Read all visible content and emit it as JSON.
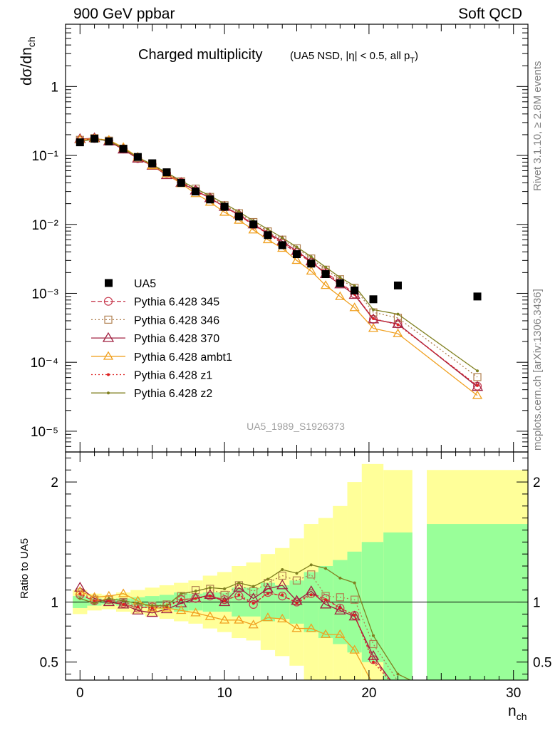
{
  "header": {
    "beam": "900 GeV ppbar",
    "process": "Soft QCD",
    "rivet_info": "Rivet 3.1.10, ≥ 2.8M events",
    "mcplots_info": "mcplots.cern.ch [arXiv:1306.3436]"
  },
  "chart_data": {
    "type": "line",
    "title": "Charged multiplicity",
    "subtitle": "(UA5 NSD, |η| < 0.5, all p",
    "subtitle_sub": "T",
    "subtitle_end": ")",
    "analysis_id": "UA5_1989_S1926373",
    "ylabel_main": "dσ/dn",
    "ylabel_main_sub": "ch",
    "ylabel_ratio": "Ratio to UA5",
    "xlabel": "n",
    "xlabel_sub": "ch",
    "x_range": [
      -1,
      31
    ],
    "y_main_range": [
      5e-06,
      8
    ],
    "y_main_scale": "log",
    "y_ratio_range": [
      0.35,
      2.25
    ],
    "x_ticks": [
      "0",
      "10",
      "20",
      "30"
    ],
    "y_main_ticks": [
      "1",
      "10⁻¹",
      "10⁻²",
      "10⁻³",
      "10⁻⁴",
      "10⁻⁵"
    ],
    "y_ratio_ticks": [
      "0.5",
      "1",
      "2"
    ],
    "legend_position": "left-middle",
    "data": {
      "name": "UA5",
      "color": "#000000",
      "x": [
        0,
        1,
        2,
        3,
        4,
        5,
        6,
        7,
        8,
        9,
        10,
        11,
        12,
        13,
        14,
        15,
        16,
        17,
        18,
        19,
        20.3,
        22,
        27.5
      ],
      "y": [
        0.155,
        0.175,
        0.16,
        0.125,
        0.095,
        0.077,
        0.057,
        0.04,
        0.03,
        0.023,
        0.018,
        0.013,
        0.01,
        0.007,
        0.005,
        0.0037,
        0.0027,
        0.0019,
        0.0014,
        0.0011,
        0.00082,
        0.0013,
        0.0009
      ]
    },
    "ratio_bands": {
      "edges": [
        -0.5,
        0.5,
        1.5,
        2.5,
        3.5,
        4.5,
        5.5,
        6.5,
        7.5,
        8.5,
        9.5,
        10.5,
        11.5,
        12.5,
        13.5,
        14.5,
        15.5,
        16.5,
        17.5,
        18.5,
        19.5,
        21.0,
        23.0,
        24.0,
        31.0
      ],
      "stat_lo": [
        0.95,
        0.97,
        0.98,
        0.97,
        0.96,
        0.95,
        0.94,
        0.92,
        0.93,
        0.92,
        0.92,
        0.88,
        0.88,
        0.84,
        0.86,
        0.82,
        0.75,
        0.7,
        0.65,
        0.58,
        0.5,
        0.0,
        null,
        0.0
      ],
      "stat_hi": [
        1.05,
        1.03,
        1.02,
        1.03,
        1.04,
        1.05,
        1.06,
        1.08,
        1.07,
        1.08,
        1.08,
        1.12,
        1.12,
        1.16,
        1.14,
        1.18,
        1.25,
        1.3,
        1.35,
        1.42,
        1.5,
        1.58,
        null,
        1.65
      ],
      "syst_lo": [
        0.9,
        0.93,
        0.94,
        0.92,
        0.9,
        0.88,
        0.86,
        0.84,
        0.82,
        0.78,
        0.75,
        0.7,
        0.68,
        0.6,
        0.55,
        0.47,
        0.35,
        0.3,
        0.25,
        0.0,
        0.0,
        0.0,
        null,
        0.42
      ],
      "syst_hi": [
        1.1,
        1.07,
        1.06,
        1.08,
        1.1,
        1.12,
        1.14,
        1.16,
        1.18,
        1.22,
        1.25,
        1.3,
        1.33,
        1.4,
        1.45,
        1.53,
        1.65,
        1.7,
        1.8,
        2.0,
        2.15,
        2.1,
        null,
        2.1
      ],
      "stat_color": "#99ff99",
      "syst_color": "#ffff99"
    },
    "series": [
      {
        "name": "Pythia 6.428 345",
        "color": "#c83c50",
        "dash": "6,3",
        "marker": "circle",
        "markerSize": 5.5,
        "y": [
          0.164,
          0.176,
          0.163,
          0.124,
          0.09,
          0.074,
          0.055,
          0.041,
          0.031,
          0.024,
          0.018,
          0.0135,
          0.0098,
          0.0073,
          0.0053,
          0.0039,
          0.0028,
          0.002,
          0.00145,
          0.00098,
          0.00042,
          0.00036,
          4.5e-05
        ],
        "ratio": [
          1.06,
          1.01,
          1.02,
          0.99,
          0.95,
          0.96,
          0.97,
          1.02,
          1.03,
          1.05,
          1.02,
          1.05,
          0.98,
          1.08,
          1.05,
          1.0,
          1.07,
          1.03,
          0.95,
          0.89,
          0.52,
          0.28,
          0.05
        ]
      },
      {
        "name": "Pythia 6.428 346",
        "color": "#b08050",
        "dash": "2,3",
        "marker": "square",
        "markerSize": 10,
        "y": [
          0.168,
          0.178,
          0.164,
          0.125,
          0.092,
          0.075,
          0.056,
          0.042,
          0.033,
          0.025,
          0.019,
          0.0145,
          0.0108,
          0.0079,
          0.006,
          0.0045,
          0.0032,
          0.0022,
          0.0016,
          0.0012,
          0.00053,
          0.00044,
          6.1e-05
        ],
        "ratio": [
          1.08,
          1.02,
          1.02,
          1.0,
          0.97,
          0.97,
          0.98,
          1.05,
          1.1,
          1.11,
          1.06,
          1.14,
          1.09,
          1.16,
          1.22,
          1.18,
          1.23,
          1.05,
          1.04,
          1.02,
          0.65,
          0.34,
          0.07
        ]
      },
      {
        "name": "Pythia 6.428 370",
        "color": "#a02040",
        "dash": "",
        "marker": "triangle",
        "markerSize": 7,
        "y": [
          0.173,
          0.178,
          0.16,
          0.122,
          0.09,
          0.071,
          0.052,
          0.04,
          0.031,
          0.024,
          0.018,
          0.0139,
          0.01,
          0.0075,
          0.0057,
          0.0041,
          0.0029,
          0.0019,
          0.00135,
          0.00095,
          0.00042,
          0.00036,
          4.4e-05
        ],
        "ratio": [
          1.12,
          1.03,
          1.0,
          0.98,
          0.93,
          0.91,
          0.94,
          0.99,
          1.03,
          1.06,
          1.0,
          1.12,
          1.03,
          1.11,
          1.14,
          1.01,
          1.09,
          0.98,
          0.93,
          0.88,
          0.55,
          0.26,
          0.05
        ]
      },
      {
        "name": "Pythia 6.428 ambt1",
        "color": "#f0a020",
        "dash": "",
        "marker": "triangle",
        "markerSize": 6,
        "y": [
          0.17,
          0.175,
          0.167,
          0.131,
          0.095,
          0.071,
          0.054,
          0.039,
          0.028,
          0.021,
          0.015,
          0.0115,
          0.0083,
          0.006,
          0.0045,
          0.003,
          0.0021,
          0.0013,
          0.0009,
          0.00062,
          0.00031,
          0.00026,
          3.3e-05
        ],
        "ratio": [
          1.09,
          1.04,
          1.05,
          1.07,
          1.01,
          0.95,
          0.95,
          0.93,
          0.91,
          0.88,
          0.85,
          0.85,
          0.81,
          0.87,
          0.86,
          0.78,
          0.78,
          0.73,
          0.73,
          0.6,
          0.31,
          0.1,
          0.03
        ]
      },
      {
        "name": "Pythia 6.428 z1",
        "color": "#dd2020",
        "dash": "2,3",
        "marker": "dot",
        "markerSize": 2,
        "y": [
          0.165,
          0.176,
          0.162,
          0.123,
          0.091,
          0.073,
          0.054,
          0.041,
          0.031,
          0.024,
          0.018,
          0.0136,
          0.0099,
          0.0074,
          0.0054,
          0.004,
          0.0028,
          0.002,
          0.0014,
          0.00097,
          0.00043,
          0.00035,
          4.6e-05
        ],
        "ratio": [
          1.07,
          1.01,
          1.01,
          0.98,
          0.96,
          0.95,
          0.96,
          1.02,
          1.03,
          1.05,
          1.01,
          1.06,
          0.99,
          1.07,
          1.06,
          0.99,
          1.06,
          1.02,
          0.95,
          0.89,
          0.5,
          0.27,
          0.05
        ]
      },
      {
        "name": "Pythia 6.428 z2",
        "color": "#808020",
        "dash": "",
        "marker": "dot",
        "markerSize": 2,
        "y": [
          0.16,
          0.172,
          0.164,
          0.126,
          0.094,
          0.074,
          0.056,
          0.043,
          0.033,
          0.026,
          0.02,
          0.0152,
          0.0113,
          0.0085,
          0.0064,
          0.0047,
          0.0034,
          0.0024,
          0.0017,
          0.00128,
          0.00058,
          0.0005,
          7.5e-05
        ],
        "ratio": [
          1.03,
          0.99,
          1.03,
          1.01,
          0.99,
          0.97,
          0.97,
          1.07,
          1.09,
          1.12,
          1.11,
          1.16,
          1.13,
          1.19,
          1.27,
          1.24,
          1.31,
          1.28,
          1.2,
          1.16,
          0.72,
          0.4,
          0.08
        ]
      }
    ]
  }
}
